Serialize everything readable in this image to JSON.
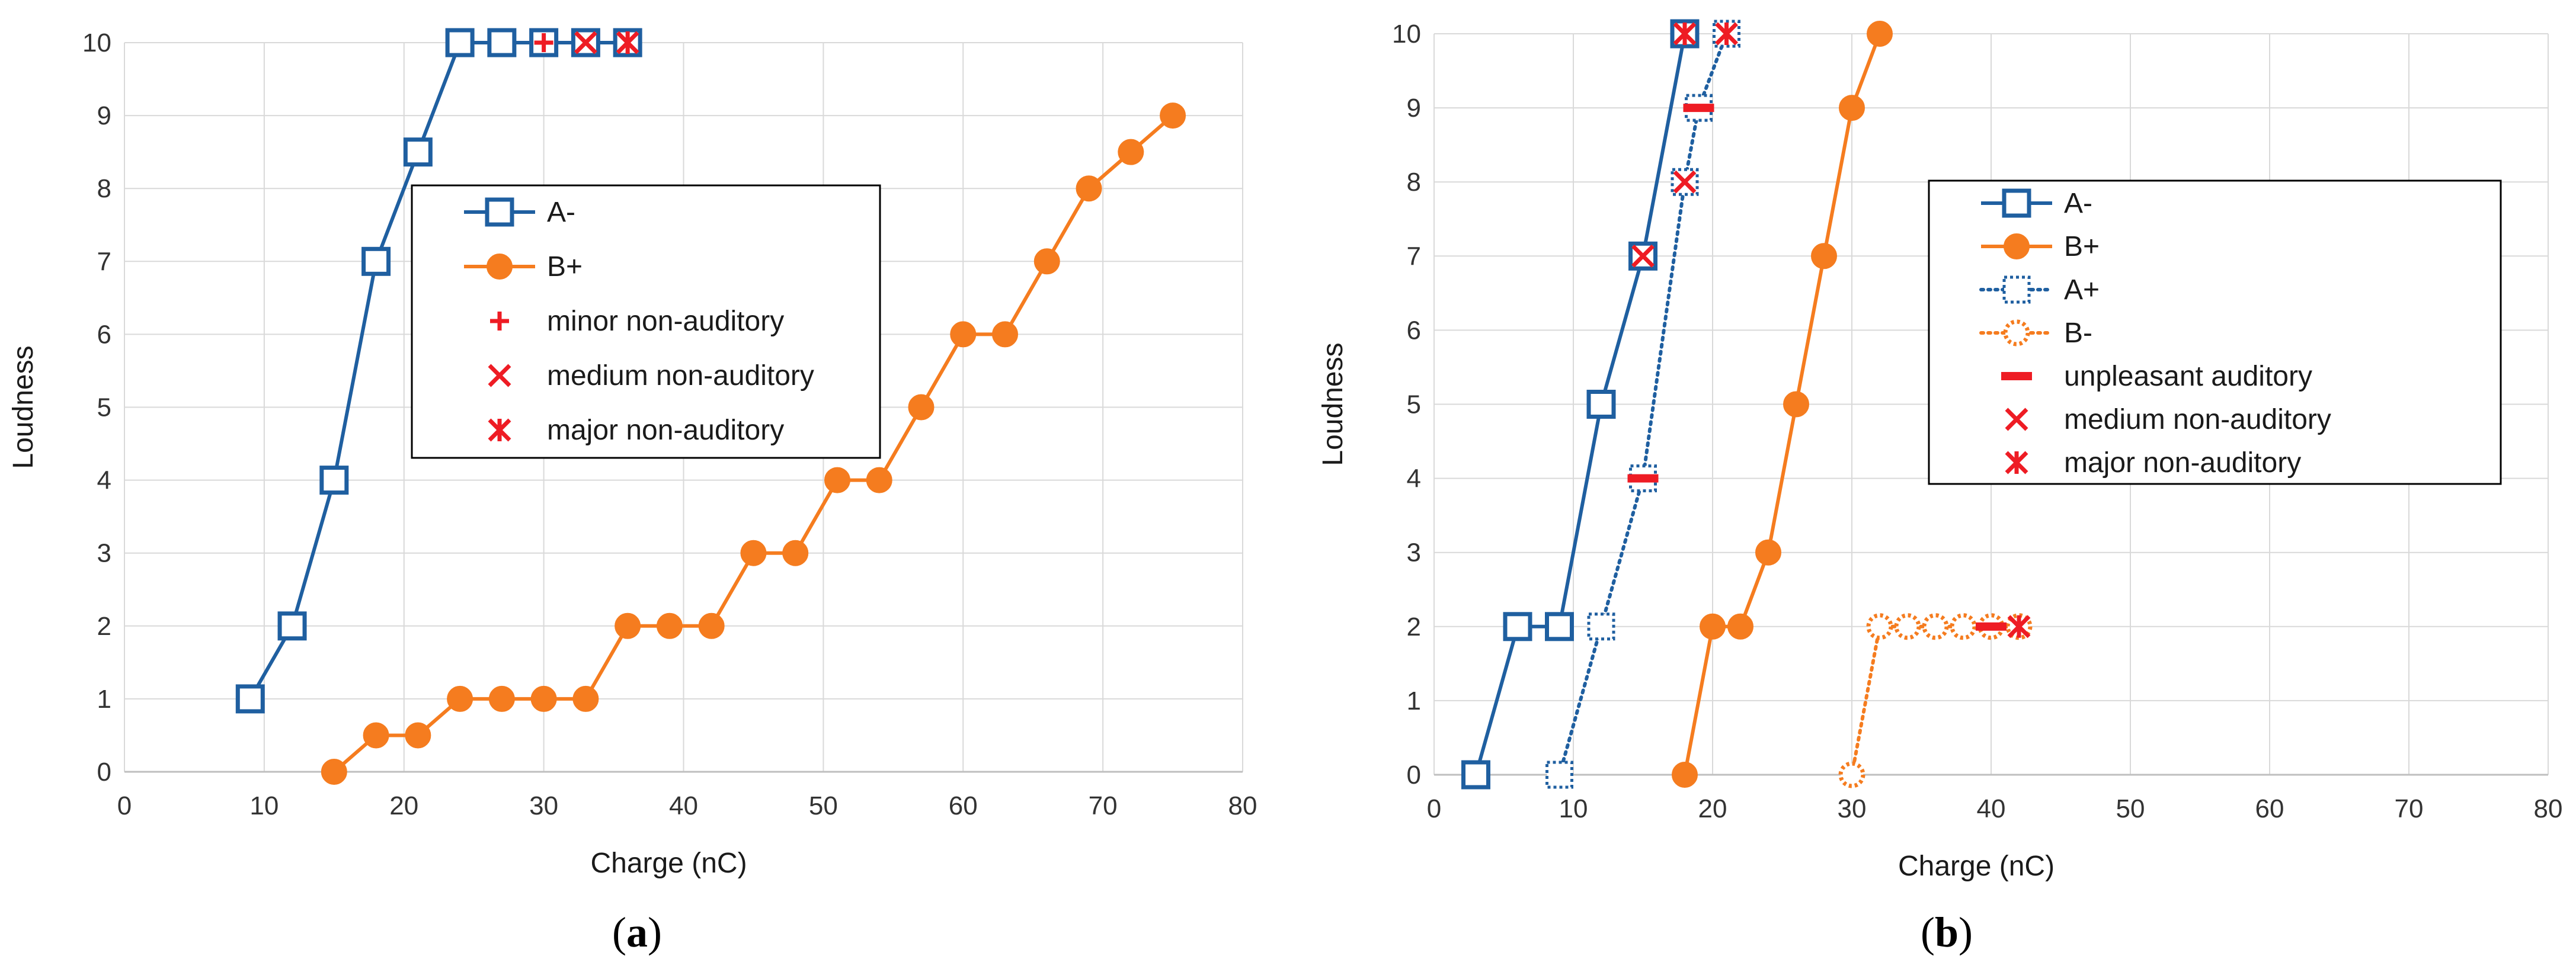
{
  "chart_data": [
    {
      "id": "a",
      "type": "line",
      "caption_letter": "a",
      "xlabel": "Charge (nC)",
      "ylabel": "Loudness",
      "xlim": [
        0,
        80
      ],
      "ylim": [
        0,
        10
      ],
      "xticks": [
        0,
        10,
        20,
        30,
        40,
        50,
        60,
        70,
        80
      ],
      "yticks": [
        0,
        1,
        2,
        3,
        4,
        5,
        6,
        7,
        8,
        9,
        10
      ],
      "grid": true,
      "legend_position": "upper-middle",
      "series": [
        {
          "name": "A-",
          "color": "#1f5fa0",
          "marker": "square",
          "dash": "solid",
          "x": [
            9,
            12,
            15,
            18,
            21,
            24,
            27,
            30,
            33,
            36
          ],
          "y": [
            1,
            2,
            4,
            7,
            8.5,
            10,
            10,
            10,
            10,
            10
          ]
        },
        {
          "name": "B+",
          "color": "#f57c1f",
          "marker": "circle",
          "dash": "solid",
          "x": [
            15,
            18,
            21,
            24,
            27,
            30,
            33,
            36,
            39,
            42,
            45,
            48,
            51,
            54,
            57,
            60,
            63,
            66,
            69,
            72,
            75
          ],
          "y": [
            0,
            0.5,
            0.5,
            1,
            1,
            1,
            1,
            2,
            2,
            2,
            3,
            3,
            4,
            4,
            5,
            6,
            6,
            7,
            8,
            8.5,
            9
          ]
        }
      ],
      "events": [
        {
          "name": "minor non-auditory",
          "color": "#ee1c24",
          "marker": "plus",
          "x": [
            30
          ],
          "y": [
            10
          ]
        },
        {
          "name": "medium non-auditory",
          "color": "#ee1c24",
          "marker": "x",
          "x": [
            33
          ],
          "y": [
            10
          ]
        },
        {
          "name": "major non-auditory",
          "color": "#ee1c24",
          "marker": "star",
          "x": [
            36
          ],
          "y": [
            10
          ]
        }
      ]
    },
    {
      "id": "b",
      "type": "line",
      "caption_letter": "b",
      "xlabel": "Charge (nC)",
      "ylabel": "Loudness",
      "xlim": [
        0,
        80
      ],
      "ylim": [
        0,
        10
      ],
      "xticks": [
        0,
        10,
        20,
        30,
        40,
        50,
        60,
        70,
        80
      ],
      "yticks": [
        0,
        1,
        2,
        3,
        4,
        5,
        6,
        7,
        8,
        9,
        10
      ],
      "grid": true,
      "legend_position": "upper-right",
      "series": [
        {
          "name": "A-",
          "color": "#1f5fa0",
          "marker": "square",
          "dash": "solid",
          "x": [
            3,
            6,
            9,
            12,
            15,
            18
          ],
          "y": [
            0,
            2,
            2,
            5,
            7,
            10
          ]
        },
        {
          "name": "B+",
          "color": "#f57c1f",
          "marker": "circle",
          "dash": "solid",
          "x": [
            18,
            20,
            22,
            24,
            26,
            28,
            30,
            32
          ],
          "y": [
            0,
            2,
            2,
            3,
            5,
            7,
            9,
            10
          ]
        },
        {
          "name": "A+",
          "color": "#1f5fa0",
          "marker": "square",
          "dash": "dotted",
          "x": [
            9,
            12,
            15,
            18,
            19,
            21
          ],
          "y": [
            0,
            2,
            4,
            8,
            9,
            10
          ]
        },
        {
          "name": "B-",
          "color": "#f57c1f",
          "marker": "circle",
          "dash": "dotted",
          "x": [
            30,
            32,
            34,
            36,
            38,
            40,
            42
          ],
          "y": [
            0,
            2,
            2,
            2,
            2,
            2,
            2
          ]
        }
      ],
      "events": [
        {
          "name": "unpleasant auditory",
          "color": "#ee1c24",
          "marker": "dash",
          "x": [
            15,
            19,
            40
          ],
          "y": [
            4,
            9,
            2
          ]
        },
        {
          "name": "medium non-auditory",
          "color": "#ee1c24",
          "marker": "x",
          "x": [
            15,
            18
          ],
          "y": [
            7,
            8
          ]
        },
        {
          "name": "major non-auditory",
          "color": "#ee1c24",
          "marker": "star",
          "x": [
            18,
            21,
            42
          ],
          "y": [
            10,
            10,
            2
          ]
        }
      ]
    }
  ]
}
